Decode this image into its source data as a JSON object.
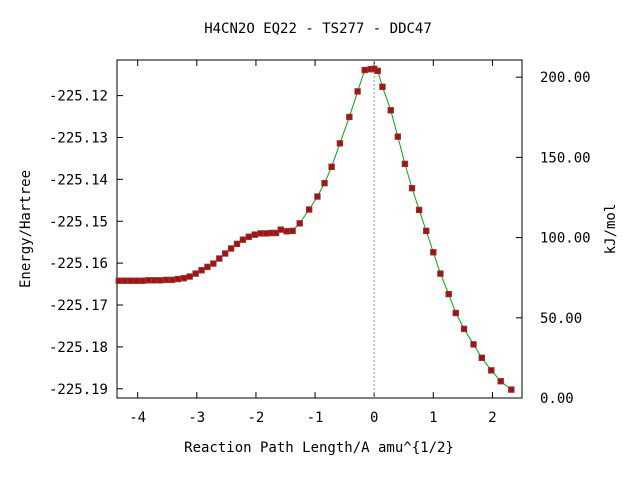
{
  "chart_data": {
    "type": "scatter",
    "title": "H4CN2O   EQ22 - TS277 - DDC47",
    "xlabel": "Reaction Path Length/A amu^{1/2}",
    "ylabel_left": "Energy/Hartree",
    "ylabel_right": "kJ/mol",
    "xlim": [
      -4.35,
      2.5
    ],
    "ylim_left": [
      -225.1922,
      -225.1115
    ],
    "ylim_right": [
      0,
      210.7
    ],
    "x_ticks": [
      -4,
      -3,
      -2,
      -1,
      0,
      1,
      2
    ],
    "x_tick_labels": [
      "-4",
      "-3",
      "-2",
      "-1",
      "0",
      "1",
      "2"
    ],
    "y_left_ticks": [
      -225.12,
      -225.13,
      -225.14,
      -225.15,
      -225.16,
      -225.17,
      -225.18,
      -225.19
    ],
    "y_left_tick_labels": [
      "-225.12",
      "-225.13",
      "-225.14",
      "-225.15",
      "-225.16",
      "-225.17",
      "-225.18",
      "-225.19"
    ],
    "y_right_ticks": [
      200,
      150,
      100,
      50,
      0
    ],
    "y_right_tick_labels": [
      "200.00",
      "150.00",
      "100.00",
      "50.00",
      "0.00"
    ],
    "ts_marker_x": 0,
    "grid": false,
    "colors": {
      "line": "#00aa00",
      "marker_fill": "#cc0000",
      "marker_edge": "#555555",
      "ts_line": "#999999"
    },
    "series": [
      {
        "x": [
          -4.32,
          -4.22,
          -4.12,
          -4.02,
          -3.92,
          -3.82,
          -3.72,
          -3.62,
          -3.52,
          -3.42,
          -3.32,
          -3.22,
          -3.12,
          -3.02,
          -2.92,
          -2.82,
          -2.72,
          -2.62,
          -2.52,
          -2.42,
          -2.32,
          -2.22,
          -2.12,
          -2.02,
          -1.92,
          -1.82,
          -1.74,
          -1.66,
          -1.58,
          -1.48,
          -1.38,
          -1.26,
          -1.1,
          -0.96,
          -0.84,
          -0.72,
          -0.58,
          -0.42,
          -0.28,
          -0.16,
          -0.06,
          0.0,
          0.06,
          0.14,
          0.28,
          0.4,
          0.52,
          0.64,
          0.76,
          0.88,
          1.0,
          1.12,
          1.26,
          1.38,
          1.52,
          1.68,
          1.82,
          1.98,
          2.14,
          2.32
        ],
        "y": [
          -225.1642,
          -225.1642,
          -225.1642,
          -225.1642,
          -225.1642,
          -225.1641,
          -225.1641,
          -225.1641,
          -225.164,
          -225.164,
          -225.1638,
          -225.1636,
          -225.1632,
          -225.1625,
          -225.1617,
          -225.1609,
          -225.1601,
          -225.1589,
          -225.1577,
          -225.1565,
          -225.1554,
          -225.1544,
          -225.1537,
          -225.1532,
          -225.1529,
          -225.1529,
          -225.1528,
          -225.1528,
          -225.152,
          -225.1524,
          -225.1523,
          -225.1505,
          -225.1472,
          -225.1441,
          -225.1409,
          -225.137,
          -225.1314,
          -225.1251,
          -225.119,
          -225.1139,
          -225.1137,
          -225.1136,
          -225.1141,
          -225.1179,
          -225.1235,
          -225.1298,
          -225.1363,
          -225.1421,
          -225.1473,
          -225.1523,
          -225.1574,
          -225.1625,
          -225.1674,
          -225.1719,
          -225.1757,
          -225.1794,
          -225.1826,
          -225.1856,
          -225.1882,
          -225.1902
        ]
      }
    ]
  }
}
